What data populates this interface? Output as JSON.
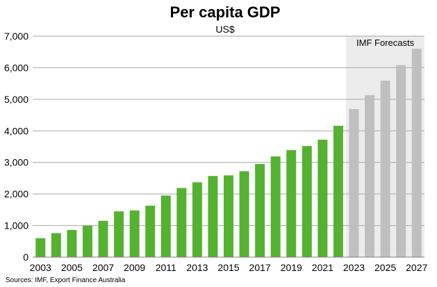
{
  "chart_data": {
    "type": "bar",
    "title": "Per capita GDP",
    "subtitle": "US$",
    "xlabel": "",
    "ylabel": "",
    "ylim": [
      0,
      7000
    ],
    "y_ticks": [
      "0",
      "1,000",
      "2,000",
      "3,000",
      "4,000",
      "5,000",
      "6,000",
      "7,000"
    ],
    "y_tick_values": [
      0,
      1000,
      2000,
      3000,
      4000,
      5000,
      6000,
      7000
    ],
    "grid": true,
    "categories": [
      "2003",
      "2004",
      "2005",
      "2006",
      "2007",
      "2008",
      "2009",
      "2010",
      "2011",
      "2012",
      "2013",
      "2014",
      "2015",
      "2016",
      "2017",
      "2018",
      "2019",
      "2020",
      "2021",
      "2022",
      "2023",
      "2024",
      "2025",
      "2026",
      "2027"
    ],
    "x_tick_labels": [
      "2003",
      "2005",
      "2007",
      "2009",
      "2011",
      "2013",
      "2015",
      "2017",
      "2019",
      "2021",
      "2023",
      "2025",
      "2027"
    ],
    "series": [
      {
        "values": [
          600,
          760,
          860,
          1000,
          1150,
          1450,
          1480,
          1630,
          1950,
          2190,
          2370,
          2570,
          2590,
          2720,
          2950,
          3190,
          3390,
          3520,
          3720,
          4160,
          4690,
          5130,
          5590,
          6080,
          6600
        ]
      }
    ],
    "forecast_start": "2023",
    "forecast_label": "IMF Forecasts",
    "colors": {
      "actual": "#55b231",
      "forecast": "#bfbfbf",
      "forecast_shade": "#ececec",
      "grid": "#a6a6a6",
      "axis": "#7f7f7f"
    }
  },
  "footer": {
    "source": "Sources: IMF, Export Finance Australia"
  }
}
